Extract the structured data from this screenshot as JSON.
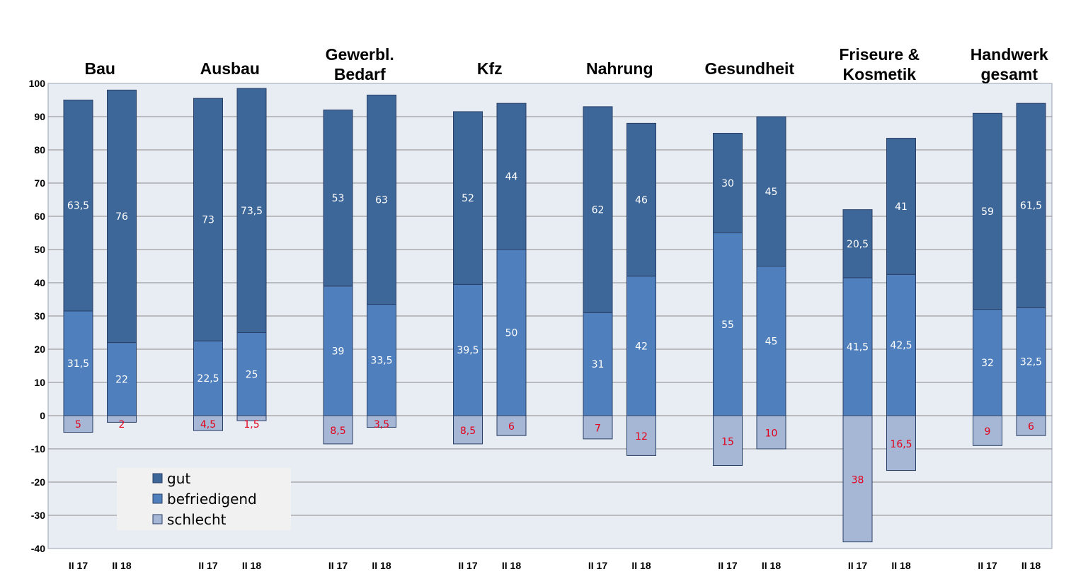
{
  "chart_data": {
    "type": "bar",
    "stacked": true,
    "ylim": [
      -40,
      100
    ],
    "yticks": [
      100,
      90,
      80,
      70,
      60,
      50,
      40,
      30,
      20,
      10,
      0,
      -10,
      -20,
      -30,
      -40
    ],
    "grid": true,
    "legend_position": "bottom-left",
    "colors": {
      "gut": "#3d6699",
      "befriedigend": "#4f80bd",
      "schlecht": "#a6b7d6",
      "plot_bg": "#e8ecf3",
      "grid": "#8a8a8a",
      "label_dark": "#ffffff",
      "label_neg": "#e3001b"
    },
    "legend": [
      {
        "key": "gut",
        "label": "gut"
      },
      {
        "key": "befriedigend",
        "label": "befriedigend"
      },
      {
        "key": "schlecht",
        "label": "schlecht"
      }
    ],
    "groups": [
      {
        "title": [
          "Bau"
        ],
        "bars": [
          {
            "period": "II 17",
            "gut": 63.5,
            "befriedigend": 31.5,
            "schlecht": 5,
            "gut_label": "63,5",
            "befriedigend_label": "31,5",
            "schlecht_label": "5"
          },
          {
            "period": "II 18",
            "gut": 76,
            "befriedigend": 22,
            "schlecht": 2,
            "gut_label": "76",
            "befriedigend_label": "22",
            "schlecht_label": "2"
          }
        ]
      },
      {
        "title": [
          "Ausbau"
        ],
        "bars": [
          {
            "period": "II 17",
            "gut": 73,
            "befriedigend": 22.5,
            "schlecht": 4.5,
            "gut_label": "73",
            "befriedigend_label": "22,5",
            "schlecht_label": "4,5"
          },
          {
            "period": "II 18",
            "gut": 73.5,
            "befriedigend": 25,
            "schlecht": 1.5,
            "gut_label": "73,5",
            "befriedigend_label": "25",
            "schlecht_label": "1,5"
          }
        ]
      },
      {
        "title": [
          "Gewerbl.",
          "Bedarf"
        ],
        "bars": [
          {
            "period": "II 17",
            "gut": 53,
            "befriedigend": 39,
            "schlecht": 8.5,
            "gut_label": "53",
            "befriedigend_label": "39",
            "schlecht_label": "8,5"
          },
          {
            "period": "II 18",
            "gut": 63,
            "befriedigend": 33.5,
            "schlecht": 3.5,
            "gut_label": "63",
            "befriedigend_label": "33,5",
            "schlecht_label": "3,5"
          }
        ]
      },
      {
        "title": [
          "Kfz"
        ],
        "bars": [
          {
            "period": "II 17",
            "gut": 52,
            "befriedigend": 39.5,
            "schlecht": 8.5,
            "gut_label": "52",
            "befriedigend_label": "39,5",
            "schlecht_label": "8,5"
          },
          {
            "period": "II 18",
            "gut": 44,
            "befriedigend": 50,
            "schlecht": 6,
            "gut_label": "44",
            "befriedigend_label": "50",
            "schlecht_label": "6"
          }
        ]
      },
      {
        "title": [
          "Nahrung"
        ],
        "bars": [
          {
            "period": "II 17",
            "gut": 62,
            "befriedigend": 31,
            "schlecht": 7,
            "gut_label": "62",
            "befriedigend_label": "31",
            "schlecht_label": "7"
          },
          {
            "period": "II 18",
            "gut": 46,
            "befriedigend": 42,
            "schlecht": 12,
            "gut_label": "46",
            "befriedigend_label": "42",
            "schlecht_label": "12"
          }
        ]
      },
      {
        "title": [
          "Gesundheit"
        ],
        "bars": [
          {
            "period": "II 17",
            "gut": 30,
            "befriedigend": 55,
            "schlecht": 15,
            "gut_label": "30",
            "befriedigend_label": "55",
            "schlecht_label": "15"
          },
          {
            "period": "II 18",
            "gut": 45,
            "befriedigend": 45,
            "schlecht": 10,
            "gut_label": "45",
            "befriedigend_label": "45",
            "schlecht_label": "10"
          }
        ]
      },
      {
        "title": [
          "Friseure &",
          "Kosmetik"
        ],
        "bars": [
          {
            "period": "II 17",
            "gut": 20.5,
            "befriedigend": 41.5,
            "schlecht": 38,
            "gut_label": "20,5",
            "befriedigend_label": "41,5",
            "schlecht_label": "38"
          },
          {
            "period": "II 18",
            "gut": 41,
            "befriedigend": 42.5,
            "schlecht": 16.5,
            "gut_label": "41",
            "befriedigend_label": "42,5",
            "schlecht_label": "16,5"
          }
        ]
      },
      {
        "title": [
          "Handwerk",
          "gesamt"
        ],
        "bars": [
          {
            "period": "II 17",
            "gut": 59,
            "befriedigend": 32,
            "schlecht": 9,
            "gut_label": "59",
            "befriedigend_label": "32",
            "schlecht_label": "9"
          },
          {
            "period": "II 18",
            "gut": 61.5,
            "befriedigend": 32.5,
            "schlecht": 6,
            "gut_label": "61,5",
            "befriedigend_label": "32,5",
            "schlecht_label": "6"
          }
        ]
      }
    ]
  }
}
